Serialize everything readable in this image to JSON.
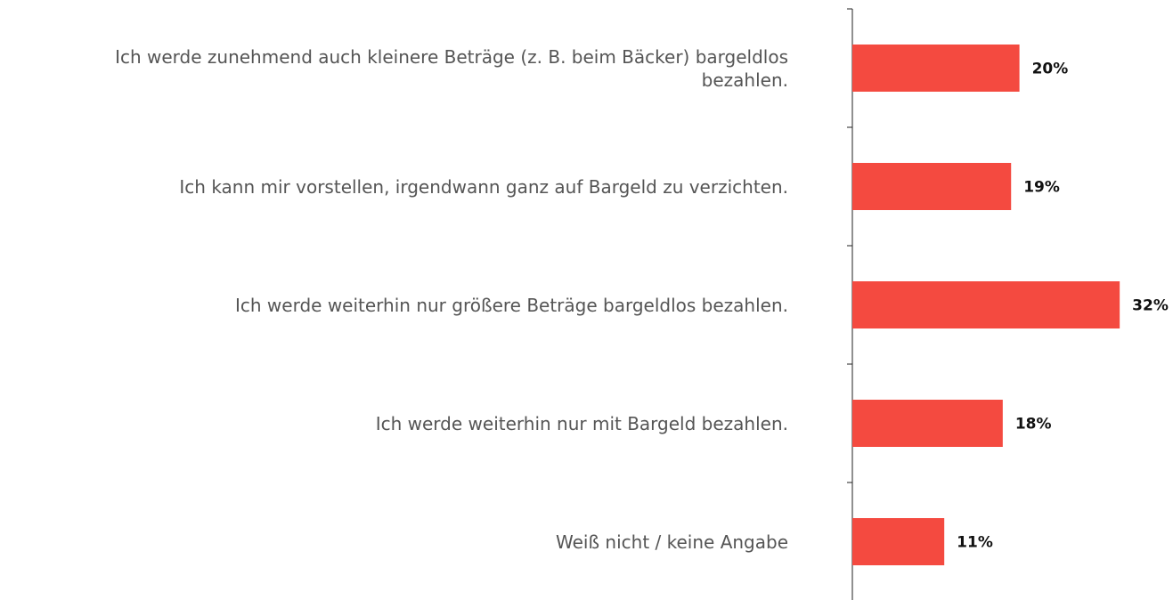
{
  "chart_data": {
    "type": "hbar",
    "categories": [
      "Ich werde zunehmend auch kleinere Beträge (z. B. beim Bäcker) bargeldlos bezahlen.",
      "Ich kann mir vorstellen, irgendwann ganz auf Bargeld zu verzichten.",
      "Ich werde weiterhin nur größere Beträge bargeldlos bezahlen.",
      "Ich werde weiterhin nur mit Bargeld bezahlen.",
      "Weiß nicht / keine Angabe"
    ],
    "values": [
      20,
      19,
      32,
      18,
      11
    ],
    "value_labels": [
      "20%",
      "19%",
      "32%",
      "18%",
      "11%"
    ],
    "color": "#f44a40"
  }
}
